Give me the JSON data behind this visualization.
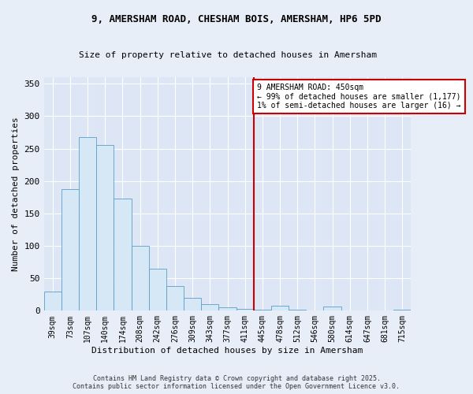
{
  "title_line1": "9, AMERSHAM ROAD, CHESHAM BOIS, AMERSHAM, HP6 5PD",
  "title_line2": "Size of property relative to detached houses in Amersham",
  "xlabel": "Distribution of detached houses by size in Amersham",
  "ylabel": "Number of detached properties",
  "categories": [
    "39sqm",
    "73sqm",
    "107sqm",
    "140sqm",
    "174sqm",
    "208sqm",
    "242sqm",
    "276sqm",
    "309sqm",
    "343sqm",
    "377sqm",
    "411sqm",
    "445sqm",
    "478sqm",
    "512sqm",
    "546sqm",
    "580sqm",
    "614sqm",
    "647sqm",
    "681sqm",
    "715sqm"
  ],
  "values": [
    30,
    187,
    268,
    255,
    173,
    100,
    65,
    38,
    20,
    10,
    5,
    3,
    2,
    8,
    2,
    1,
    7,
    0,
    0,
    0,
    2
  ],
  "bar_color_fill": "#d6e8f5",
  "bar_color_edge": "#5a9fc8",
  "line_color": "#cc0000",
  "highlight_index": 12,
  "annotation_title": "9 AMERSHAM ROAD: 450sqm",
  "annotation_line2": "← 99% of detached houses are smaller (1,177)",
  "annotation_line3": "1% of semi-detached houses are larger (16) →",
  "annotation_box_color": "#cc0000",
  "ylim": [
    0,
    360
  ],
  "yticks": [
    0,
    50,
    100,
    150,
    200,
    250,
    300,
    350
  ],
  "footer_line1": "Contains HM Land Registry data © Crown copyright and database right 2025.",
  "footer_line2": "Contains public sector information licensed under the Open Government Licence v3.0.",
  "bg_color": "#e8eef8",
  "plot_bg_color": "#dce6f5",
  "grid_color": "#ffffff",
  "title_fontsize": 9,
  "subtitle_fontsize": 8,
  "tick_fontsize": 7,
  "ylabel_fontsize": 8,
  "xlabel_fontsize": 8,
  "annot_fontsize": 7,
  "footer_fontsize": 6
}
